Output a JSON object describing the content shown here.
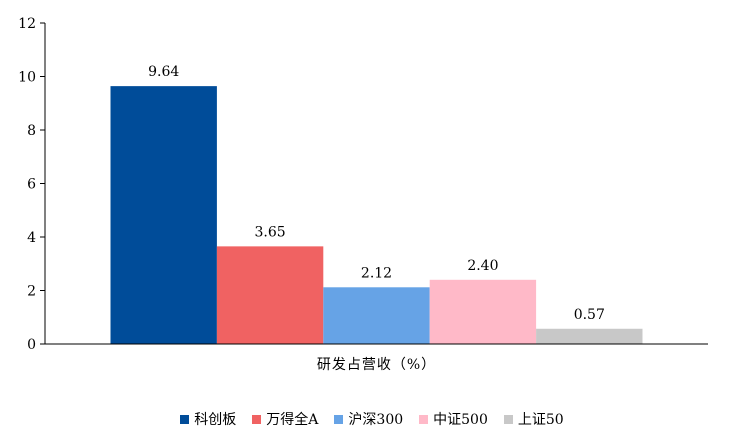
{
  "chart_data": {
    "type": "bar",
    "categories": [
      "研发占营收（%）"
    ],
    "series": [
      {
        "name": "科创板",
        "values": [
          9.64
        ],
        "color": "#004C99"
      },
      {
        "name": "万得全A",
        "values": [
          3.65
        ],
        "color": "#F06262"
      },
      {
        "name": "沪深300",
        "values": [
          2.12
        ],
        "color": "#66A3E6"
      },
      {
        "name": "中证500",
        "values": [
          2.4
        ],
        "color": "#FFB9C8"
      },
      {
        "name": "上证50",
        "values": [
          0.57
        ],
        "color": "#C8C8C8"
      }
    ],
    "data_labels": [
      "9.64",
      "3.65",
      "2.12",
      "2.40",
      "0.57"
    ],
    "yticks": [
      "0",
      "2",
      "4",
      "6",
      "8",
      "10",
      "12"
    ],
    "ylim": [
      0,
      12
    ],
    "grid": false,
    "legend_position": "bottom"
  }
}
